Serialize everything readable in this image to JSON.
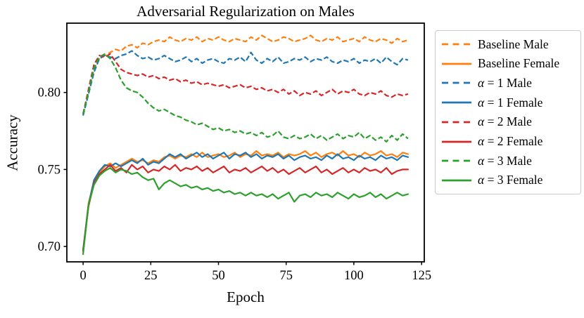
{
  "chart_data": {
    "type": "line",
    "title": "Adversarial Regularization on Males",
    "xlabel": "Epoch",
    "ylabel": "Accuracy",
    "xlim": [
      -6,
      126
    ],
    "ylim": [
      0.69,
      0.845
    ],
    "xticks": [
      0,
      25,
      50,
      75,
      100,
      125
    ],
    "xtick_labels": [
      "0",
      "25",
      "50",
      "75",
      "100",
      "125"
    ],
    "yticks": [
      0.7,
      0.75,
      0.8
    ],
    "ytick_labels": [
      "0.70",
      "0.75",
      "0.80"
    ],
    "grid": false,
    "legend_position": "outside-right",
    "colors": {
      "orange": "#ff7f0e",
      "blue": "#1f77b4",
      "red": "#d62728",
      "green": "#2ca02c"
    },
    "x": [
      0,
      2,
      4,
      6,
      8,
      10,
      12,
      14,
      16,
      18,
      20,
      22,
      24,
      26,
      28,
      30,
      32,
      34,
      36,
      38,
      40,
      42,
      44,
      46,
      48,
      50,
      52,
      54,
      56,
      58,
      60,
      62,
      64,
      66,
      68,
      70,
      72,
      74,
      76,
      78,
      80,
      82,
      84,
      86,
      88,
      90,
      92,
      94,
      96,
      98,
      100,
      102,
      104,
      106,
      108,
      110,
      112,
      114,
      116,
      118,
      120
    ],
    "series": [
      {
        "name": "Baseline Male",
        "color": "#ff7f0e",
        "dash": true,
        "values": [
          0.786,
          0.801,
          0.815,
          0.822,
          0.824,
          0.826,
          0.828,
          0.827,
          0.83,
          0.831,
          0.829,
          0.832,
          0.831,
          0.833,
          0.834,
          0.833,
          0.836,
          0.834,
          0.833,
          0.835,
          0.834,
          0.836,
          0.833,
          0.835,
          0.834,
          0.836,
          0.834,
          0.833,
          0.835,
          0.834,
          0.833,
          0.836,
          0.834,
          0.837,
          0.835,
          0.833,
          0.834,
          0.836,
          0.835,
          0.833,
          0.834,
          0.835,
          0.837,
          0.834,
          0.833,
          0.835,
          0.834,
          0.836,
          0.833,
          0.834,
          0.835,
          0.833,
          0.836,
          0.834,
          0.833,
          0.835,
          0.834,
          0.832,
          0.835,
          0.833,
          0.834
        ]
      },
      {
        "name": "Baseline Female",
        "color": "#ff7f0e",
        "dash": false,
        "values": [
          0.697,
          0.728,
          0.742,
          0.748,
          0.752,
          0.754,
          0.751,
          0.753,
          0.755,
          0.757,
          0.755,
          0.756,
          0.754,
          0.756,
          0.755,
          0.758,
          0.759,
          0.757,
          0.759,
          0.758,
          0.76,
          0.758,
          0.761,
          0.758,
          0.759,
          0.76,
          0.758,
          0.759,
          0.761,
          0.758,
          0.76,
          0.759,
          0.762,
          0.759,
          0.76,
          0.759,
          0.761,
          0.758,
          0.76,
          0.759,
          0.76,
          0.762,
          0.759,
          0.761,
          0.758,
          0.76,
          0.761,
          0.759,
          0.762,
          0.759,
          0.76,
          0.758,
          0.761,
          0.759,
          0.76,
          0.762,
          0.759,
          0.76,
          0.758,
          0.761,
          0.76
        ]
      },
      {
        "name": "α = 1 Male",
        "color": "#1f77b4",
        "dash": true,
        "values": [
          0.785,
          0.799,
          0.813,
          0.822,
          0.824,
          0.823,
          0.822,
          0.824,
          0.825,
          0.827,
          0.824,
          0.822,
          0.823,
          0.821,
          0.822,
          0.824,
          0.822,
          0.82,
          0.821,
          0.823,
          0.82,
          0.822,
          0.819,
          0.821,
          0.822,
          0.82,
          0.819,
          0.822,
          0.821,
          0.823,
          0.82,
          0.826,
          0.821,
          0.819,
          0.822,
          0.82,
          0.823,
          0.819,
          0.82,
          0.822,
          0.821,
          0.823,
          0.82,
          0.822,
          0.821,
          0.823,
          0.82,
          0.819,
          0.821,
          0.82,
          0.822,
          0.819,
          0.821,
          0.82,
          0.822,
          0.819,
          0.823,
          0.82,
          0.818,
          0.822,
          0.821
        ]
      },
      {
        "name": "α = 1 Female",
        "color": "#1f77b4",
        "dash": false,
        "values": [
          0.698,
          0.727,
          0.743,
          0.749,
          0.753,
          0.752,
          0.754,
          0.752,
          0.754,
          0.756,
          0.754,
          0.757,
          0.753,
          0.755,
          0.754,
          0.757,
          0.76,
          0.758,
          0.76,
          0.757,
          0.759,
          0.761,
          0.758,
          0.76,
          0.757,
          0.759,
          0.761,
          0.757,
          0.76,
          0.759,
          0.761,
          0.758,
          0.76,
          0.757,
          0.759,
          0.758,
          0.76,
          0.757,
          0.759,
          0.756,
          0.758,
          0.759,
          0.757,
          0.758,
          0.756,
          0.759,
          0.757,
          0.76,
          0.757,
          0.758,
          0.756,
          0.759,
          0.757,
          0.758,
          0.756,
          0.759,
          0.757,
          0.758,
          0.756,
          0.759,
          0.758
        ]
      },
      {
        "name": "α = 2 Male",
        "color": "#d62728",
        "dash": true,
        "values": [
          0.786,
          0.802,
          0.818,
          0.824,
          0.823,
          0.825,
          0.82,
          0.815,
          0.813,
          0.812,
          0.811,
          0.812,
          0.81,
          0.811,
          0.809,
          0.81,
          0.808,
          0.809,
          0.807,
          0.808,
          0.806,
          0.807,
          0.805,
          0.806,
          0.805,
          0.804,
          0.805,
          0.803,
          0.804,
          0.805,
          0.803,
          0.804,
          0.802,
          0.803,
          0.801,
          0.802,
          0.8,
          0.802,
          0.799,
          0.801,
          0.798,
          0.8,
          0.799,
          0.801,
          0.798,
          0.8,
          0.802,
          0.799,
          0.801,
          0.8,
          0.802,
          0.799,
          0.798,
          0.8,
          0.799,
          0.801,
          0.798,
          0.797,
          0.799,
          0.798,
          0.799
        ]
      },
      {
        "name": "α = 2 Female",
        "color": "#d62728",
        "dash": false,
        "values": [
          0.697,
          0.726,
          0.741,
          0.747,
          0.75,
          0.753,
          0.749,
          0.751,
          0.748,
          0.753,
          0.75,
          0.752,
          0.748,
          0.75,
          0.749,
          0.752,
          0.75,
          0.753,
          0.749,
          0.751,
          0.75,
          0.752,
          0.749,
          0.751,
          0.748,
          0.75,
          0.752,
          0.748,
          0.75,
          0.749,
          0.751,
          0.748,
          0.75,
          0.752,
          0.749,
          0.751,
          0.748,
          0.75,
          0.747,
          0.749,
          0.751,
          0.748,
          0.75,
          0.752,
          0.748,
          0.75,
          0.747,
          0.749,
          0.751,
          0.748,
          0.75,
          0.748,
          0.751,
          0.749,
          0.75,
          0.748,
          0.751,
          0.747,
          0.749,
          0.75,
          0.75
        ]
      },
      {
        "name": "α = 3 Male",
        "color": "#2ca02c",
        "dash": true,
        "values": [
          0.786,
          0.8,
          0.816,
          0.823,
          0.825,
          0.822,
          0.816,
          0.808,
          0.803,
          0.801,
          0.8,
          0.797,
          0.793,
          0.79,
          0.788,
          0.789,
          0.787,
          0.785,
          0.784,
          0.782,
          0.781,
          0.779,
          0.78,
          0.778,
          0.776,
          0.777,
          0.775,
          0.776,
          0.774,
          0.775,
          0.773,
          0.774,
          0.772,
          0.774,
          0.771,
          0.772,
          0.775,
          0.771,
          0.77,
          0.772,
          0.77,
          0.771,
          0.773,
          0.77,
          0.772,
          0.769,
          0.771,
          0.773,
          0.77,
          0.772,
          0.771,
          0.774,
          0.77,
          0.772,
          0.769,
          0.771,
          0.768,
          0.772,
          0.769,
          0.773,
          0.77
        ]
      },
      {
        "name": "α = 3 Female",
        "color": "#2ca02c",
        "dash": false,
        "values": [
          0.695,
          0.727,
          0.74,
          0.746,
          0.749,
          0.751,
          0.748,
          0.75,
          0.749,
          0.747,
          0.748,
          0.745,
          0.743,
          0.744,
          0.737,
          0.741,
          0.743,
          0.741,
          0.739,
          0.74,
          0.738,
          0.739,
          0.737,
          0.738,
          0.736,
          0.737,
          0.735,
          0.736,
          0.734,
          0.735,
          0.733,
          0.735,
          0.733,
          0.734,
          0.732,
          0.734,
          0.731,
          0.733,
          0.735,
          0.729,
          0.733,
          0.734,
          0.732,
          0.735,
          0.733,
          0.734,
          0.732,
          0.735,
          0.733,
          0.731,
          0.734,
          0.732,
          0.733,
          0.735,
          0.732,
          0.734,
          0.731,
          0.733,
          0.735,
          0.733,
          0.734
        ]
      }
    ]
  }
}
